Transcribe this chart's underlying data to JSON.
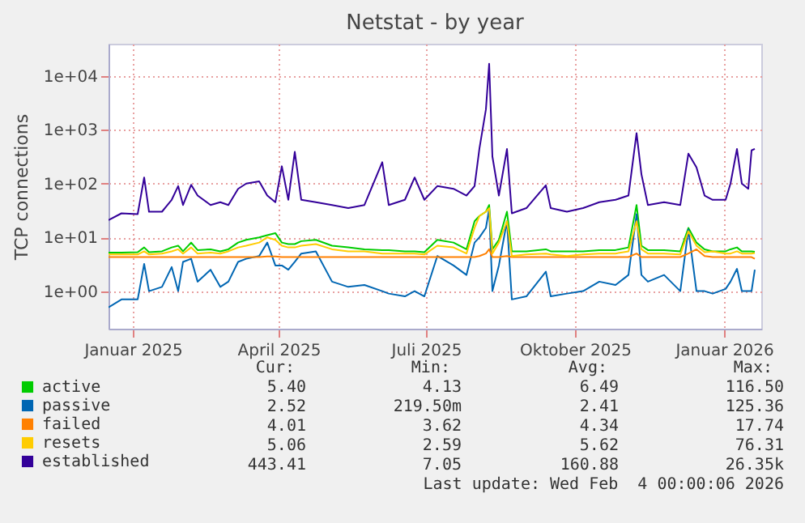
{
  "chart_data": {
    "type": "line",
    "title": "Netstat - by year",
    "ylabel": "TCP connections",
    "x": [
      "2024-12-17",
      "2024-12-25",
      "2025-01-04",
      "2025-01-08",
      "2025-01-11",
      "2025-01-19",
      "2025-01-25",
      "2025-01-29",
      "2025-02-01",
      "2025-02-06",
      "2025-02-10",
      "2025-02-18",
      "2025-02-24",
      "2025-03-01",
      "2025-03-07",
      "2025-03-12",
      "2025-03-20",
      "2025-03-25",
      "2025-03-30",
      "2025-04-03",
      "2025-04-07",
      "2025-04-11",
      "2025-04-15",
      "2025-04-24",
      "2025-05-04",
      "2025-05-14",
      "2025-05-24",
      "2025-06-04",
      "2025-06-08",
      "2025-06-18",
      "2025-06-24",
      "2025-06-30",
      "2025-07-08",
      "2025-07-18",
      "2025-07-26",
      "2025-07-31",
      "2025-08-03",
      "2025-08-07",
      "2025-08-09",
      "2025-08-11",
      "2025-08-15",
      "2025-08-20",
      "2025-08-23",
      "2025-09-01",
      "2025-09-13",
      "2025-09-16",
      "2025-09-26",
      "2025-10-06",
      "2025-10-16",
      "2025-10-26",
      "2025-11-03",
      "2025-11-08",
      "2025-11-11",
      "2025-11-15",
      "2025-11-25",
      "2025-12-05",
      "2025-12-10",
      "2025-12-15",
      "2025-12-20",
      "2025-12-25",
      "2026-01-02",
      "2026-01-05",
      "2026-01-09",
      "2026-01-12",
      "2026-01-16",
      "2026-01-18",
      "2026-01-20"
    ],
    "series": [
      {
        "name": "active",
        "color": "#00cc00",
        "values": [
          5.2,
          5.2,
          5.3,
          6.5,
          5.3,
          5.5,
          6.5,
          7,
          5.5,
          8,
          5.8,
          6,
          5.5,
          6,
          8,
          9,
          10,
          11,
          12,
          8,
          7.5,
          7.5,
          8.5,
          9,
          7,
          6.5,
          6,
          5.8,
          5.8,
          5.5,
          5.5,
          5.3,
          9,
          8,
          6,
          20,
          25,
          30,
          40,
          6,
          9,
          30,
          5.5,
          5.5,
          6,
          5.5,
          5.5,
          5.5,
          5.8,
          5.8,
          6.5,
          40,
          7,
          5.8,
          5.8,
          5.5,
          15,
          8,
          6,
          5.5,
          5.5,
          6,
          6.5,
          5.5,
          5.5,
          5.5,
          5.4
        ]
      },
      {
        "name": "passive",
        "color": "#0066b3",
        "values": [
          0.5,
          0.7,
          0.7,
          3.2,
          1,
          1.2,
          2.8,
          1,
          3.5,
          4,
          1.5,
          2.5,
          1.2,
          1.5,
          3.5,
          4,
          4.5,
          8,
          3,
          3,
          2.5,
          3.5,
          5,
          5.5,
          1.5,
          1.2,
          1.3,
          1,
          0.9,
          0.8,
          1,
          0.8,
          4.5,
          3,
          2,
          8,
          10,
          15,
          34,
          1,
          3,
          20,
          0.7,
          0.8,
          2.3,
          0.8,
          0.9,
          1,
          1.5,
          1.3,
          2,
          27,
          2,
          1.5,
          2,
          1,
          14,
          1,
          1,
          0.9,
          1.1,
          1.5,
          2.6,
          1,
          1,
          1,
          2.5
        ]
      },
      {
        "name": "failed",
        "color": "#ff8000",
        "values": [
          4.3,
          4.3,
          4.3,
          4.3,
          4.3,
          4.3,
          4.3,
          4.3,
          4.3,
          4.3,
          4.3,
          4.3,
          4.3,
          4.3,
          4.3,
          4.3,
          4.3,
          4.4,
          4.4,
          4.3,
          4.3,
          4.3,
          4.3,
          4.3,
          4.3,
          4.3,
          4.3,
          4.3,
          4.3,
          4.3,
          4.3,
          4.3,
          4.3,
          4.3,
          4.3,
          4.3,
          4.5,
          5,
          6,
          4.3,
          4.3,
          4.5,
          4.3,
          4.3,
          4.3,
          4.3,
          4.3,
          4.3,
          4.3,
          4.3,
          4.3,
          5,
          4.3,
          4.3,
          4.3,
          4.3,
          5,
          6,
          4.5,
          4.3,
          4.3,
          4.3,
          4.3,
          4.3,
          4.3,
          4.3,
          4
        ]
      },
      {
        "name": "resets",
        "color": "#ffcc00",
        "values": [
          4.8,
          4.8,
          4.8,
          5.5,
          4.8,
          5,
          5.5,
          6,
          5,
          6.5,
          5,
          5.2,
          5,
          5.5,
          6.5,
          7,
          8,
          10,
          9,
          7,
          6.5,
          6.5,
          7,
          7.5,
          6,
          5.5,
          5.5,
          5,
          5,
          5,
          5,
          4.8,
          7,
          6.5,
          5,
          15,
          25,
          30,
          35,
          5,
          8,
          20,
          4.5,
          4.8,
          5,
          4.8,
          4.5,
          4.8,
          5,
          5,
          5.5,
          20,
          6,
          5,
          5,
          4.8,
          13,
          7,
          5.3,
          5.5,
          5,
          5,
          5.5,
          5,
          5,
          5,
          5.1
        ]
      },
      {
        "name": "established",
        "color": "#330099",
        "values": [
          21,
          28,
          27,
          130,
          30,
          30,
          50,
          90,
          40,
          95,
          60,
          40,
          45,
          40,
          80,
          100,
          110,
          60,
          45,
          210,
          50,
          390,
          50,
          45,
          40,
          35,
          40,
          250,
          40,
          50,
          130,
          50,
          90,
          80,
          60,
          90,
          450,
          2400,
          17000,
          320,
          60,
          440,
          28,
          35,
          93,
          35,
          30,
          35,
          45,
          50,
          60,
          870,
          150,
          40,
          45,
          40,
          360,
          200,
          60,
          50,
          50,
          100,
          440,
          100,
          80,
          415,
          443
        ]
      }
    ],
    "ylim": [
      0.2,
      40000
    ],
    "yticks": [
      {
        "value": 1,
        "label": "1e+00"
      },
      {
        "value": 10,
        "label": "1e+01"
      },
      {
        "value": 100,
        "label": "1e+02"
      },
      {
        "value": 1000,
        "label": "1e+03"
      },
      {
        "value": 10000,
        "label": "1e+04"
      }
    ],
    "xlim": [
      "2024-12-17",
      "2026-01-24"
    ],
    "xticks": [
      {
        "value": "2025-01-01",
        "label": "Januar 2025"
      },
      {
        "value": "2025-04-01",
        "label": "April 2025"
      },
      {
        "value": "2025-07-01",
        "label": "Juli 2025"
      },
      {
        "value": "2025-10-01",
        "label": "Oktober 2025"
      },
      {
        "value": "2026-01-01",
        "label": "Januar 2026"
      }
    ],
    "log": "y",
    "grid": true,
    "legend": "bottom left",
    "annotations": [
      "Cur:",
      "Min:",
      "Avg:",
      "Max:",
      "5.40",
      "4.13",
      "6.49",
      "116.50",
      "2.52",
      "219.50m",
      "2.41",
      "125.36",
      "4.01",
      "3.62",
      "4.34",
      "17.74",
      "5.06",
      "2.59",
      "5.62",
      "76.31",
      "443.41",
      "7.05",
      "160.88",
      "26.35k",
      "Last update: Wed Feb  4 00:00:06 2026"
    ]
  }
}
